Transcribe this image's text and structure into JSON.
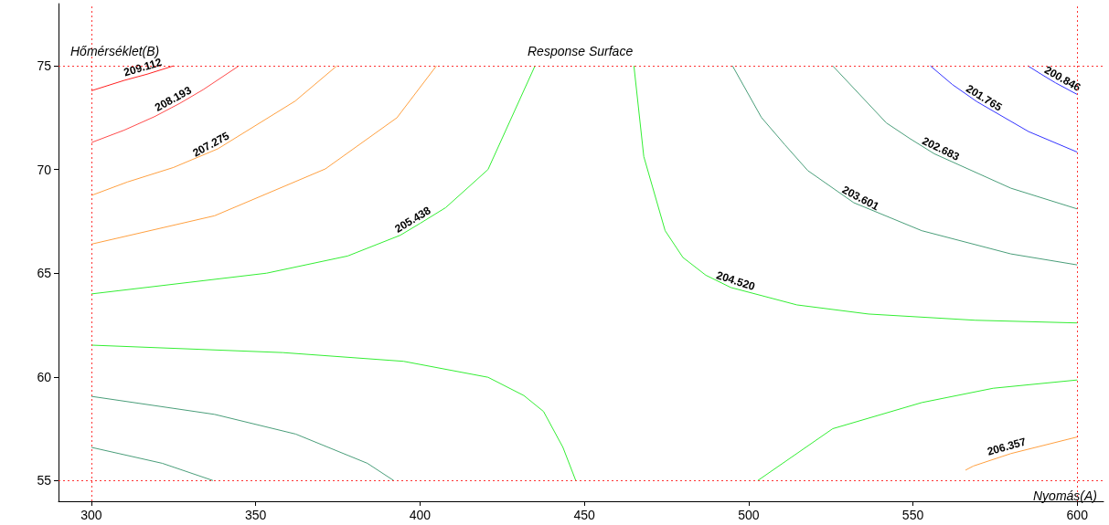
{
  "chart_data": {
    "type": "line",
    "title": "Response Surface",
    "xlabel": "Nyomás(A)",
    "ylabel": "Hőmérséklet(B)",
    "xlim": [
      290,
      608
    ],
    "ylim": [
      54,
      78
    ],
    "xticks": [
      300,
      350,
      400,
      450,
      500,
      550,
      600
    ],
    "yticks": [
      55,
      60,
      65,
      70,
      75
    ],
    "grid": false,
    "legend": false,
    "marker": "none",
    "line_style": "solid",
    "ref_lines": [
      {
        "axis": "x",
        "value": 300,
        "color": "#ff3333",
        "line_style": "dotted"
      },
      {
        "axis": "x",
        "value": 600,
        "color": "#ff3333",
        "line_style": "dotted"
      },
      {
        "axis": "y",
        "value": 55,
        "color": "#ff3333",
        "line_style": "dotted"
      },
      {
        "axis": "y",
        "value": 75,
        "color": "#ff3333",
        "line_style": "dotted"
      }
    ],
    "series": [
      {
        "name": "209.112",
        "color": "#ff2020",
        "x": [
          300,
          310,
          317,
          325
        ],
        "values": [
          73.8,
          74.3,
          74.6,
          75
        ]
      },
      {
        "name": "208.193",
        "color": "#ff4a4a",
        "x": [
          300,
          310,
          319.2,
          327,
          334,
          344.9
        ],
        "values": [
          71.3,
          71.9,
          72.55,
          73.2,
          73.85,
          75
        ]
      },
      {
        "name": "207.275",
        "color": "#ffa040",
        "x": [
          300,
          311,
          325,
          338.5,
          362,
          374.7
        ],
        "values": [
          68.75,
          69.4,
          70.1,
          71,
          73.3,
          75
        ]
      },
      {
        "color": "#ffa040",
        "x": [
          300,
          337.5,
          371.2,
          393,
          405
        ],
        "values": [
          66.4,
          67.77,
          70.03,
          72.5,
          75
        ]
      },
      {
        "name": "205.438",
        "color": "#33ee33",
        "x": [
          300,
          353.3,
          378,
          394,
          400,
          407.8,
          420.7,
          435
        ],
        "values": [
          64.0,
          65.0,
          65.83,
          66.83,
          67.4,
          68.16,
          70.0,
          75
        ]
      },
      {
        "color": "#33ee33",
        "x": [
          300,
          358.3,
          395,
          420.7,
          431.6,
          437.6,
          443.5,
          447.4
        ],
        "values": [
          61.53,
          61.17,
          60.75,
          59.98,
          59.1,
          58.33,
          56.6,
          55
        ]
      },
      {
        "color": "#4a9e7a",
        "x": [
          300,
          337.5,
          362.2,
          384,
          392
        ],
        "values": [
          59.06,
          58.19,
          57.24,
          55.83,
          55
        ]
      },
      {
        "color": "#4a9e7a",
        "x": [
          300,
          321.6,
          337
        ],
        "values": [
          56.6,
          55.83,
          55
        ]
      },
      {
        "name": "204.520",
        "color": "#33ee33",
        "x": [
          465.1,
          468.1,
          474.6,
          480,
          487,
          494.6,
          514.7,
          536.5,
          569,
          600
        ],
        "values": [
          75,
          70.63,
          67.05,
          65.76,
          64.9,
          64.31,
          63.47,
          63.03,
          62.73,
          62.6
        ]
      },
      {
        "color": "#33ee33",
        "x": [
          502.8,
          525.6,
          552.7,
          574.4,
          600
        ],
        "values": [
          55,
          57.5,
          58.76,
          59.45,
          59.85
        ]
      },
      {
        "name": "203.601",
        "color": "#4a9e7a",
        "x": [
          495.1,
          503.9,
          511,
          518,
          532,
          552.7,
          579.8,
          600
        ],
        "values": [
          75,
          72.51,
          71.2,
          69.95,
          68.4,
          67.05,
          65.93,
          65.4
        ]
      },
      {
        "name": "202.683",
        "color": "#4a9e7a",
        "x": [
          525.6,
          541.9,
          549,
          556.5,
          579.8,
          600
        ],
        "values": [
          75,
          72.25,
          71.5,
          70.76,
          69.1,
          68.1
        ]
      },
      {
        "name": "201.765",
        "color": "#3333ff",
        "x": [
          555.3,
          562,
          569.4,
          585.2,
          600
        ],
        "values": [
          75,
          74.1,
          73.28,
          71.83,
          70.84
        ]
      },
      {
        "name": "200.846",
        "color": "#3333ff",
        "x": [
          585,
          589,
          593.4,
          600
        ],
        "values": [
          75,
          74.6,
          74.18,
          73.62
        ]
      },
      {
        "name": "206.357",
        "color": "#ffa040",
        "x": [
          566,
          568.4,
          579.8,
          600
        ],
        "values": [
          55.5,
          55.7,
          56.3,
          57.1
        ]
      }
    ]
  }
}
